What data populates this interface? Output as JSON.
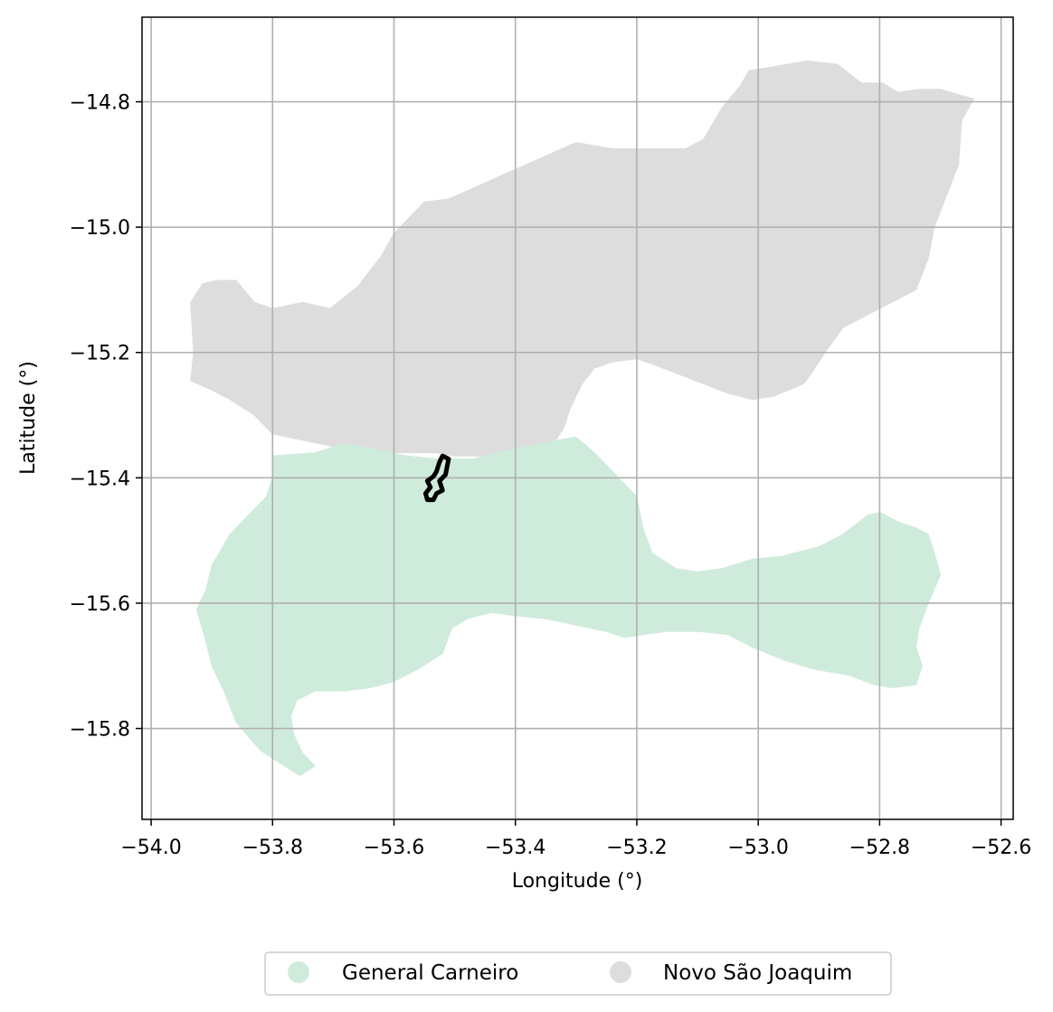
{
  "chart_data": {
    "type": "map",
    "xlabel": "Longitude (°)",
    "ylabel": "Latitude (°)",
    "xlim": [
      -54.015,
      -52.58
    ],
    "ylim": [
      -15.945,
      -14.665
    ],
    "grid": true,
    "legend_placement": "bottom-center",
    "x_ticks": [
      {
        "value": -54.0,
        "label": "−54.0"
      },
      {
        "value": -53.8,
        "label": "−53.8"
      },
      {
        "value": -53.6,
        "label": "−53.6"
      },
      {
        "value": -53.4,
        "label": "−53.4"
      },
      {
        "value": -53.2,
        "label": "−53.2"
      },
      {
        "value": -53.0,
        "label": "−53.0"
      },
      {
        "value": -52.8,
        "label": "−52.8"
      },
      {
        "value": -52.6,
        "label": "−52.6"
      }
    ],
    "y_ticks": [
      {
        "value": -14.8,
        "label": "−14.8"
      },
      {
        "value": -15.0,
        "label": "−15.0"
      },
      {
        "value": -15.2,
        "label": "−15.2"
      },
      {
        "value": -15.4,
        "label": "−15.4"
      },
      {
        "value": -15.6,
        "label": "−15.6"
      },
      {
        "value": -15.8,
        "label": "−15.8"
      }
    ],
    "regions": [
      {
        "name": "Novo São Joaquim",
        "color": "#dddddd",
        "polygon": [
          [
            -53.935,
            -15.245
          ],
          [
            -53.93,
            -15.2
          ],
          [
            -53.935,
            -15.12
          ],
          [
            -53.915,
            -15.09
          ],
          [
            -53.89,
            -15.085
          ],
          [
            -53.86,
            -15.085
          ],
          [
            -53.83,
            -15.12
          ],
          [
            -53.8,
            -15.13
          ],
          [
            -53.75,
            -15.12
          ],
          [
            -53.705,
            -15.13
          ],
          [
            -53.66,
            -15.095
          ],
          [
            -53.62,
            -15.045
          ],
          [
            -53.6,
            -15.01
          ],
          [
            -53.58,
            -14.99
          ],
          [
            -53.55,
            -14.96
          ],
          [
            -53.51,
            -14.955
          ],
          [
            -53.3,
            -14.865
          ],
          [
            -53.24,
            -14.875
          ],
          [
            -53.12,
            -14.875
          ],
          [
            -53.09,
            -14.86
          ],
          [
            -53.06,
            -14.81
          ],
          [
            -53.03,
            -14.775
          ],
          [
            -53.015,
            -14.75
          ],
          [
            -52.98,
            -14.745
          ],
          [
            -52.92,
            -14.735
          ],
          [
            -52.87,
            -14.74
          ],
          [
            -52.83,
            -14.77
          ],
          [
            -52.795,
            -14.77
          ],
          [
            -52.77,
            -14.785
          ],
          [
            -52.735,
            -14.78
          ],
          [
            -52.7,
            -14.78
          ],
          [
            -52.665,
            -14.79
          ],
          [
            -52.645,
            -14.795
          ],
          [
            -52.665,
            -14.83
          ],
          [
            -52.67,
            -14.9
          ],
          [
            -52.69,
            -14.95
          ],
          [
            -52.71,
            -15.0
          ],
          [
            -52.72,
            -15.05
          ],
          [
            -52.74,
            -15.1
          ],
          [
            -52.78,
            -15.12
          ],
          [
            -52.82,
            -15.14
          ],
          [
            -52.86,
            -15.16
          ],
          [
            -52.89,
            -15.2
          ],
          [
            -52.91,
            -15.23
          ],
          [
            -52.925,
            -15.25
          ],
          [
            -52.95,
            -15.26
          ],
          [
            -52.975,
            -15.27
          ],
          [
            -53.01,
            -15.275
          ],
          [
            -53.05,
            -15.265
          ],
          [
            -53.09,
            -15.25
          ],
          [
            -53.13,
            -15.235
          ],
          [
            -53.17,
            -15.22
          ],
          [
            -53.2,
            -15.21
          ],
          [
            -53.24,
            -15.215
          ],
          [
            -53.27,
            -15.225
          ],
          [
            -53.29,
            -15.25
          ],
          [
            -53.31,
            -15.29
          ],
          [
            -53.32,
            -15.32
          ],
          [
            -53.34,
            -15.35
          ],
          [
            -53.38,
            -15.37
          ],
          [
            -53.44,
            -15.365
          ],
          [
            -53.5,
            -15.365
          ],
          [
            -53.53,
            -15.36
          ],
          [
            -53.6,
            -15.36
          ],
          [
            -53.65,
            -15.36
          ],
          [
            -53.7,
            -15.35
          ],
          [
            -53.75,
            -15.34
          ],
          [
            -53.8,
            -15.33
          ],
          [
            -53.83,
            -15.3
          ],
          [
            -53.87,
            -15.275
          ],
          [
            -53.9,
            -15.26
          ]
        ]
      },
      {
        "name": "General Carneiro",
        "color": "#cfebdc",
        "polygon": [
          [
            -53.8,
            -15.365
          ],
          [
            -53.73,
            -15.36
          ],
          [
            -53.68,
            -15.345
          ],
          [
            -53.63,
            -15.355
          ],
          [
            -53.58,
            -15.365
          ],
          [
            -53.53,
            -15.37
          ],
          [
            -53.47,
            -15.37
          ],
          [
            -53.43,
            -15.36
          ],
          [
            -53.38,
            -15.35
          ],
          [
            -53.33,
            -15.34
          ],
          [
            -53.3,
            -15.335
          ],
          [
            -53.27,
            -15.36
          ],
          [
            -53.24,
            -15.39
          ],
          [
            -53.22,
            -15.41
          ],
          [
            -53.2,
            -15.43
          ],
          [
            -53.19,
            -15.48
          ],
          [
            -53.175,
            -15.52
          ],
          [
            -53.135,
            -15.545
          ],
          [
            -53.1,
            -15.55
          ],
          [
            -53.06,
            -15.545
          ],
          [
            -53.01,
            -15.53
          ],
          [
            -52.96,
            -15.525
          ],
          [
            -52.9,
            -15.51
          ],
          [
            -52.86,
            -15.49
          ],
          [
            -52.82,
            -15.46
          ],
          [
            -52.8,
            -15.455
          ],
          [
            -52.77,
            -15.47
          ],
          [
            -52.74,
            -15.48
          ],
          [
            -52.72,
            -15.49
          ],
          [
            -52.71,
            -15.52
          ],
          [
            -52.7,
            -15.555
          ],
          [
            -52.72,
            -15.6
          ],
          [
            -52.735,
            -15.64
          ],
          [
            -52.74,
            -15.67
          ],
          [
            -52.73,
            -15.7
          ],
          [
            -52.74,
            -15.73
          ],
          [
            -52.78,
            -15.735
          ],
          [
            -52.81,
            -15.73
          ],
          [
            -52.85,
            -15.715
          ],
          [
            -52.88,
            -15.71
          ],
          [
            -52.91,
            -15.705
          ],
          [
            -52.96,
            -15.69
          ],
          [
            -53.01,
            -15.67
          ],
          [
            -53.05,
            -15.65
          ],
          [
            -53.1,
            -15.645
          ],
          [
            -53.15,
            -15.645
          ],
          [
            -53.19,
            -15.65
          ],
          [
            -53.22,
            -15.655
          ],
          [
            -53.25,
            -15.645
          ],
          [
            -53.3,
            -15.635
          ],
          [
            -53.35,
            -15.625
          ],
          [
            -53.4,
            -15.62
          ],
          [
            -53.44,
            -15.615
          ],
          [
            -53.48,
            -15.625
          ],
          [
            -53.505,
            -15.64
          ],
          [
            -53.52,
            -15.68
          ],
          [
            -53.56,
            -15.705
          ],
          [
            -53.6,
            -15.725
          ],
          [
            -53.64,
            -15.735
          ],
          [
            -53.68,
            -15.74
          ],
          [
            -53.73,
            -15.74
          ],
          [
            -53.76,
            -15.755
          ],
          [
            -53.77,
            -15.78
          ],
          [
            -53.765,
            -15.81
          ],
          [
            -53.75,
            -15.84
          ],
          [
            -53.73,
            -15.86
          ],
          [
            -53.755,
            -15.875
          ],
          [
            -53.78,
            -15.86
          ],
          [
            -53.82,
            -15.835
          ],
          [
            -53.86,
            -15.79
          ],
          [
            -53.88,
            -15.74
          ],
          [
            -53.9,
            -15.7
          ],
          [
            -53.91,
            -15.66
          ],
          [
            -53.925,
            -15.61
          ],
          [
            -53.91,
            -15.58
          ],
          [
            -53.9,
            -15.54
          ],
          [
            -53.87,
            -15.49
          ],
          [
            -53.84,
            -15.46
          ],
          [
            -53.81,
            -15.43
          ],
          [
            -53.8,
            -15.4
          ]
        ]
      }
    ],
    "outline": {
      "color": "#000000",
      "polygon": [
        [
          -53.52,
          -15.365
        ],
        [
          -53.51,
          -15.37
        ],
        [
          -53.515,
          -15.395
        ],
        [
          -53.525,
          -15.405
        ],
        [
          -53.52,
          -15.42
        ],
        [
          -53.53,
          -15.425
        ],
        [
          -53.535,
          -15.435
        ],
        [
          -53.545,
          -15.435
        ],
        [
          -53.548,
          -15.425
        ],
        [
          -53.54,
          -15.415
        ],
        [
          -53.545,
          -15.405
        ],
        [
          -53.535,
          -15.398
        ],
        [
          -53.53,
          -15.39
        ],
        [
          -53.525,
          -15.375
        ]
      ]
    }
  },
  "legend": {
    "items": [
      {
        "label": "General Carneiro",
        "color": "#cfebdc"
      },
      {
        "label": "Novo São Joaquim",
        "color": "#dddddd"
      }
    ]
  }
}
